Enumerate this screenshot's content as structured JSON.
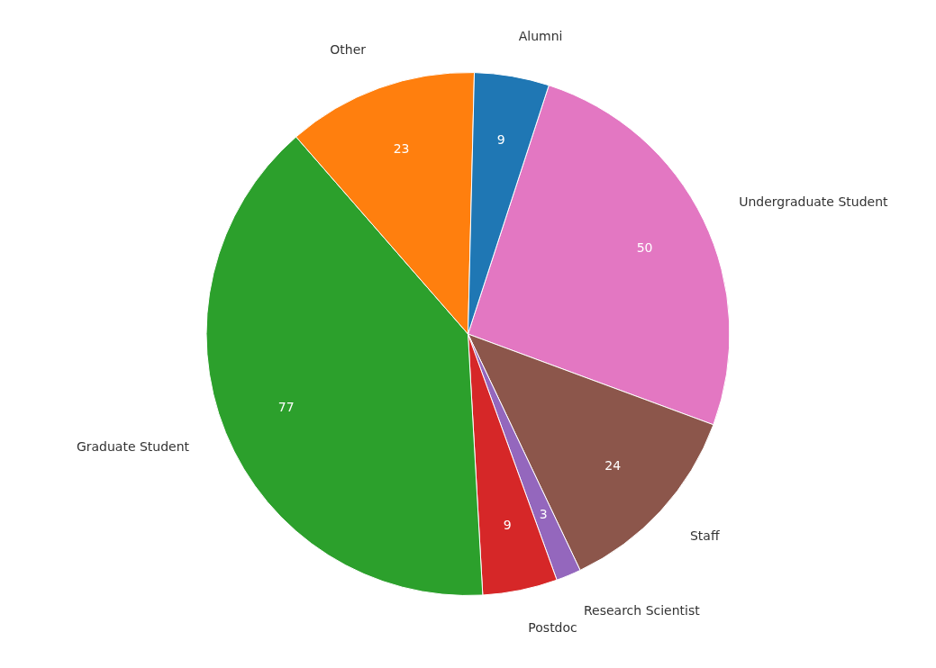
{
  "chart_data": {
    "type": "pie",
    "categories": [
      "Undergraduate Student",
      "Staff",
      "Research Scientist",
      "Postdoc",
      "Graduate Student",
      "Other",
      "Alumni"
    ],
    "values": [
      50,
      24,
      3,
      9,
      77,
      23,
      9
    ],
    "colors": [
      "#e377c2",
      "#8c564b",
      "#9467bd",
      "#d62728",
      "#2ca02c",
      "#ff7f0e",
      "#1f77b4"
    ],
    "data_labels": true
  }
}
